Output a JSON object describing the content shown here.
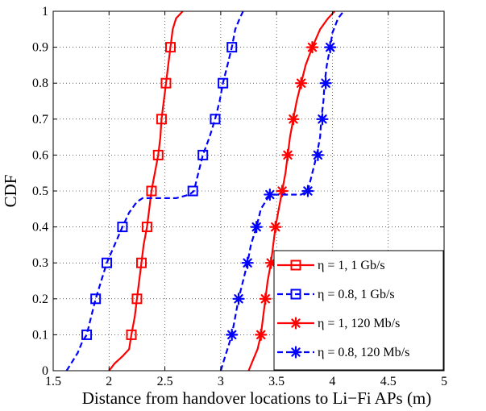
{
  "chart_data": {
    "type": "line",
    "title": "",
    "xlabel": "Distance from handover locations to Li−Fi APs (m)",
    "ylabel": "CDF",
    "xlim": [
      1.5,
      5
    ],
    "ylim": [
      0,
      1
    ],
    "xticks": [
      "1.5",
      "2",
      "2.5",
      "3",
      "3.5",
      "4",
      "4.5",
      "5"
    ],
    "yticks": [
      "0",
      "0.1",
      "0.2",
      "0.3",
      "0.4",
      "0.5",
      "0.6",
      "0.7",
      "0.8",
      "0.9",
      "1"
    ],
    "grid": true,
    "legend_position": "bottom-right",
    "series": [
      {
        "name": "η = 1, 1 Gb/s",
        "color": "#ff0000",
        "line_style": "solid",
        "marker": "square",
        "points": [
          [
            2.0,
            0
          ],
          [
            2.05,
            0.02
          ],
          [
            2.12,
            0.04
          ],
          [
            2.18,
            0.06
          ],
          [
            2.2,
            0.1
          ],
          [
            2.23,
            0.15
          ],
          [
            2.25,
            0.2
          ],
          [
            2.27,
            0.25
          ],
          [
            2.29,
            0.3
          ],
          [
            2.31,
            0.35
          ],
          [
            2.34,
            0.4
          ],
          [
            2.36,
            0.45
          ],
          [
            2.38,
            0.5
          ],
          [
            2.41,
            0.55
          ],
          [
            2.44,
            0.6
          ],
          [
            2.46,
            0.65
          ],
          [
            2.47,
            0.7
          ],
          [
            2.49,
            0.75
          ],
          [
            2.51,
            0.8
          ],
          [
            2.53,
            0.85
          ],
          [
            2.55,
            0.9
          ],
          [
            2.57,
            0.95
          ],
          [
            2.6,
            0.98
          ],
          [
            2.66,
            1.0
          ]
        ],
        "markers": [
          [
            2.2,
            0.1
          ],
          [
            2.25,
            0.2
          ],
          [
            2.29,
            0.3
          ],
          [
            2.34,
            0.4
          ],
          [
            2.38,
            0.5
          ],
          [
            2.44,
            0.6
          ],
          [
            2.47,
            0.7
          ],
          [
            2.51,
            0.8
          ],
          [
            2.55,
            0.9
          ]
        ]
      },
      {
        "name": "η = 0.8, 1 Gb/s",
        "color": "#0000ff",
        "line_style": "dashed",
        "marker": "square",
        "points": [
          [
            1.62,
            0
          ],
          [
            1.66,
            0.02
          ],
          [
            1.72,
            0.05
          ],
          [
            1.76,
            0.08
          ],
          [
            1.8,
            0.1
          ],
          [
            1.84,
            0.15
          ],
          [
            1.88,
            0.2
          ],
          [
            1.93,
            0.25
          ],
          [
            1.98,
            0.3
          ],
          [
            2.05,
            0.35
          ],
          [
            2.12,
            0.4
          ],
          [
            2.18,
            0.44
          ],
          [
            2.25,
            0.47
          ],
          [
            2.3,
            0.48
          ],
          [
            2.6,
            0.48
          ],
          [
            2.72,
            0.49
          ],
          [
            2.76,
            0.5
          ],
          [
            2.8,
            0.55
          ],
          [
            2.84,
            0.6
          ],
          [
            2.9,
            0.65
          ],
          [
            2.95,
            0.7
          ],
          [
            2.99,
            0.75
          ],
          [
            3.02,
            0.8
          ],
          [
            3.06,
            0.85
          ],
          [
            3.1,
            0.9
          ],
          [
            3.13,
            0.95
          ],
          [
            3.17,
            0.98
          ],
          [
            3.2,
            1.0
          ]
        ],
        "markers": [
          [
            1.8,
            0.1
          ],
          [
            1.88,
            0.2
          ],
          [
            1.98,
            0.3
          ],
          [
            2.12,
            0.4
          ],
          [
            2.75,
            0.5
          ],
          [
            2.84,
            0.6
          ],
          [
            2.95,
            0.7
          ],
          [
            3.02,
            0.8
          ],
          [
            3.1,
            0.9
          ]
        ]
      },
      {
        "name": "η = 1, 120 Mb/s",
        "color": "#ff0000",
        "line_style": "solid",
        "marker": "star",
        "points": [
          [
            3.25,
            0
          ],
          [
            3.29,
            0.03
          ],
          [
            3.33,
            0.06
          ],
          [
            3.36,
            0.1
          ],
          [
            3.38,
            0.15
          ],
          [
            3.4,
            0.2
          ],
          [
            3.42,
            0.25
          ],
          [
            3.45,
            0.3
          ],
          [
            3.47,
            0.35
          ],
          [
            3.49,
            0.4
          ],
          [
            3.52,
            0.45
          ],
          [
            3.55,
            0.5
          ],
          [
            3.58,
            0.55
          ],
          [
            3.6,
            0.6
          ],
          [
            3.62,
            0.65
          ],
          [
            3.65,
            0.7
          ],
          [
            3.68,
            0.75
          ],
          [
            3.72,
            0.8
          ],
          [
            3.76,
            0.85
          ],
          [
            3.82,
            0.9
          ],
          [
            3.89,
            0.95
          ],
          [
            3.96,
            0.98
          ],
          [
            4.02,
            1.0
          ]
        ],
        "markers": [
          [
            3.36,
            0.1
          ],
          [
            3.4,
            0.2
          ],
          [
            3.45,
            0.3
          ],
          [
            3.49,
            0.4
          ],
          [
            3.55,
            0.5
          ],
          [
            3.6,
            0.6
          ],
          [
            3.65,
            0.7
          ],
          [
            3.72,
            0.8
          ],
          [
            3.82,
            0.9
          ]
        ]
      },
      {
        "name": "η = 0.8, 120 Mb/s",
        "color": "#0000ff",
        "line_style": "dashed",
        "marker": "star",
        "points": [
          [
            3.0,
            0
          ],
          [
            3.03,
            0.03
          ],
          [
            3.07,
            0.07
          ],
          [
            3.1,
            0.1
          ],
          [
            3.13,
            0.15
          ],
          [
            3.16,
            0.2
          ],
          [
            3.2,
            0.25
          ],
          [
            3.24,
            0.3
          ],
          [
            3.27,
            0.35
          ],
          [
            3.32,
            0.4
          ],
          [
            3.36,
            0.45
          ],
          [
            3.42,
            0.48
          ],
          [
            3.48,
            0.49
          ],
          [
            3.72,
            0.49
          ],
          [
            3.78,
            0.5
          ],
          [
            3.82,
            0.55
          ],
          [
            3.86,
            0.6
          ],
          [
            3.89,
            0.65
          ],
          [
            3.9,
            0.7
          ],
          [
            3.92,
            0.75
          ],
          [
            3.93,
            0.8
          ],
          [
            3.95,
            0.85
          ],
          [
            3.98,
            0.9
          ],
          [
            4.0,
            0.94
          ],
          [
            4.05,
            0.98
          ],
          [
            4.1,
            1.0
          ]
        ],
        "markers": [
          [
            3.1,
            0.1
          ],
          [
            3.16,
            0.2
          ],
          [
            3.24,
            0.3
          ],
          [
            3.32,
            0.4
          ],
          [
            3.44,
            0.49
          ],
          [
            3.78,
            0.5
          ],
          [
            3.87,
            0.6
          ],
          [
            3.91,
            0.7
          ],
          [
            3.94,
            0.8
          ],
          [
            3.98,
            0.9
          ]
        ]
      }
    ]
  }
}
